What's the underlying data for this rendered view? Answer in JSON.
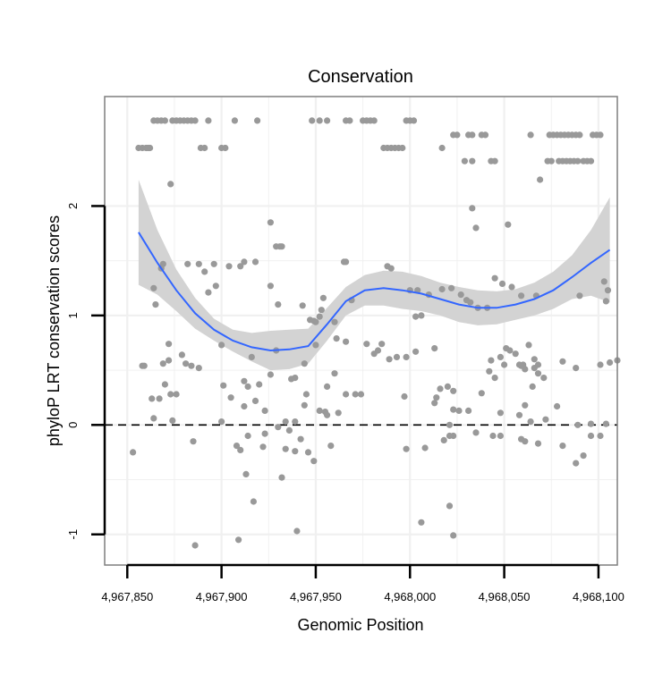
{
  "chart_data": {
    "type": "scatter",
    "title": "Conservation",
    "xlabel": "Genomic Position",
    "ylabel": "phyloP LRT conservation scores",
    "xlim": [
      4967838,
      4968110
    ],
    "ylim": [
      -1.28,
      3.0
    ],
    "xticks": [
      {
        "value": 4967850,
        "label": "4,967,850"
      },
      {
        "value": 4967900,
        "label": "4,967,900"
      },
      {
        "value": 4967950,
        "label": "4,967,950"
      },
      {
        "value": 4968000,
        "label": "4,968,000"
      },
      {
        "value": 4968050,
        "label": "4,968,050"
      },
      {
        "value": 4968100,
        "label": "4,968,100"
      }
    ],
    "yticks": [
      {
        "value": -1,
        "label": "-1"
      },
      {
        "value": 0,
        "label": "0"
      },
      {
        "value": 1,
        "label": "1"
      },
      {
        "value": 2,
        "label": "2"
      }
    ],
    "reference_line": {
      "y": 0,
      "style": "dashed"
    },
    "grid": true,
    "colors": {
      "points": "#999999",
      "smooth_line": "#3366ff",
      "confidence_band": "#d3d3d3",
      "panel_border": "#7f7f7f",
      "grid": "#f0f0f0"
    },
    "points": [
      [
        4967856,
        2.53
      ],
      [
        4967858,
        2.53
      ],
      [
        4967860,
        2.53
      ],
      [
        4967861,
        2.53
      ],
      [
        4967862,
        2.53
      ],
      [
        4967864,
        2.78
      ],
      [
        4967866,
        2.78
      ],
      [
        4967868,
        2.78
      ],
      [
        4967870,
        2.78
      ],
      [
        4967874,
        2.78
      ],
      [
        4967876,
        2.78
      ],
      [
        4967878,
        2.78
      ],
      [
        4967880,
        2.78
      ],
      [
        4967882,
        2.78
      ],
      [
        4967884,
        2.78
      ],
      [
        4967886,
        2.78
      ],
      [
        4967889,
        2.53
      ],
      [
        4967891,
        2.53
      ],
      [
        4967893,
        2.78
      ],
      [
        4967900,
        2.53
      ],
      [
        4967902,
        2.53
      ],
      [
        4967907,
        2.78
      ],
      [
        4967919,
        2.78
      ],
      [
        4967948,
        2.78
      ],
      [
        4967952,
        2.78
      ],
      [
        4967956,
        2.78
      ],
      [
        4967966,
        2.78
      ],
      [
        4967968,
        2.78
      ],
      [
        4967975,
        2.78
      ],
      [
        4967977,
        2.78
      ],
      [
        4967979,
        2.78
      ],
      [
        4967981,
        2.78
      ],
      [
        4967986,
        2.53
      ],
      [
        4967988,
        2.53
      ],
      [
        4967990,
        2.53
      ],
      [
        4967992,
        2.53
      ],
      [
        4967994,
        2.53
      ],
      [
        4967996,
        2.53
      ],
      [
        4967998,
        2.78
      ],
      [
        4968000,
        2.78
      ],
      [
        4968002,
        2.78
      ],
      [
        4968017,
        2.53
      ],
      [
        4968023,
        2.65
      ],
      [
        4968025,
        2.65
      ],
      [
        4968031,
        2.65
      ],
      [
        4968033,
        2.65
      ],
      [
        4968038,
        2.65
      ],
      [
        4968040,
        2.65
      ],
      [
        4968064,
        2.65
      ],
      [
        4968074,
        2.65
      ],
      [
        4968076,
        2.65
      ],
      [
        4968078,
        2.65
      ],
      [
        4968080,
        2.65
      ],
      [
        4968082,
        2.65
      ],
      [
        4968084,
        2.65
      ],
      [
        4968086,
        2.65
      ],
      [
        4968088,
        2.65
      ],
      [
        4968090,
        2.65
      ],
      [
        4968097,
        2.65
      ],
      [
        4968099,
        2.65
      ],
      [
        4968101,
        2.65
      ],
      [
        4968073,
        2.41
      ],
      [
        4968075,
        2.41
      ],
      [
        4968079,
        2.41
      ],
      [
        4968081,
        2.41
      ],
      [
        4968083,
        2.41
      ],
      [
        4968085,
        2.41
      ],
      [
        4968087,
        2.41
      ],
      [
        4968089,
        2.41
      ],
      [
        4968092,
        2.41
      ],
      [
        4968094,
        2.41
      ],
      [
        4968096,
        2.41
      ],
      [
        4968029,
        2.41
      ],
      [
        4968033,
        2.41
      ],
      [
        4968043,
        2.41
      ],
      [
        4968045,
        2.41
      ],
      [
        4967873,
        2.2
      ],
      [
        4968069,
        2.24
      ],
      [
        4968033,
        1.98
      ],
      [
        4968035,
        1.8
      ],
      [
        4968052,
        1.83
      ],
      [
        4967926,
        1.85
      ],
      [
        4967929,
        1.63
      ],
      [
        4967931,
        1.63
      ],
      [
        4967932,
        1.63
      ],
      [
        4967868,
        1.43
      ],
      [
        4967869,
        1.47
      ],
      [
        4967882,
        1.47
      ],
      [
        4967888,
        1.47
      ],
      [
        4967891,
        1.4
      ],
      [
        4967896,
        1.47
      ],
      [
        4967904,
        1.45
      ],
      [
        4967910,
        1.45
      ],
      [
        4967912,
        1.49
      ],
      [
        4967918,
        1.49
      ],
      [
        4967965,
        1.49
      ],
      [
        4967966,
        1.49
      ],
      [
        4967988,
        1.45
      ],
      [
        4967990,
        1.43
      ],
      [
        4968045,
        1.34
      ],
      [
        4968049,
        1.29
      ],
      [
        4968054,
        1.26
      ],
      [
        4967864,
        1.25
      ],
      [
        4967897,
        1.27
      ],
      [
        4967893,
        1.21
      ],
      [
        4967926,
        1.27
      ],
      [
        4967954,
        1.16
      ],
      [
        4967969,
        1.14
      ],
      [
        4968000,
        1.23
      ],
      [
        4968004,
        1.23
      ],
      [
        4968010,
        1.19
      ],
      [
        4968017,
        1.24
      ],
      [
        4968022,
        1.25
      ],
      [
        4968027,
        1.19
      ],
      [
        4968030,
        1.14
      ],
      [
        4968032,
        1.12
      ],
      [
        4968036,
        1.07
      ],
      [
        4968041,
        1.07
      ],
      [
        4968059,
        1.18
      ],
      [
        4968067,
        1.18
      ],
      [
        4968090,
        1.18
      ],
      [
        4968103,
        1.31
      ],
      [
        4968105,
        1.23
      ],
      [
        4968104,
        1.13
      ],
      [
        4967865,
        1.1
      ],
      [
        4967930,
        1.1
      ],
      [
        4967943,
        1.09
      ],
      [
        4967947,
        0.96
      ],
      [
        4967949,
        0.95
      ],
      [
        4967952,
        0.99
      ],
      [
        4967950,
        0.94
      ],
      [
        4967953,
        1.05
      ],
      [
        4967960,
        0.94
      ],
      [
        4968003,
        0.99
      ],
      [
        4968006,
        1.0
      ],
      [
        4967872,
        0.74
      ],
      [
        4967900,
        0.73
      ],
      [
        4967929,
        0.68
      ],
      [
        4967950,
        0.73
      ],
      [
        4967961,
        0.79
      ],
      [
        4967966,
        0.76
      ],
      [
        4967977,
        0.74
      ],
      [
        4967985,
        0.74
      ],
      [
        4967981,
        0.65
      ],
      [
        4967983,
        0.68
      ],
      [
        4967989,
        0.6
      ],
      [
        4967993,
        0.62
      ],
      [
        4967998,
        0.62
      ],
      [
        4968003,
        0.67
      ],
      [
        4968013,
        0.7
      ],
      [
        4968051,
        0.7
      ],
      [
        4968053,
        0.68
      ],
      [
        4968056,
        0.65
      ],
      [
        4968063,
        0.73
      ],
      [
        4968066,
        0.6
      ],
      [
        4968068,
        0.55
      ],
      [
        4968058,
        0.55
      ],
      [
        4968066,
        0.52
      ],
      [
        4967858,
        0.54
      ],
      [
        4967859,
        0.54
      ],
      [
        4967869,
        0.56
      ],
      [
        4967872,
        0.59
      ],
      [
        4967879,
        0.64
      ],
      [
        4967881,
        0.56
      ],
      [
        4967884,
        0.54
      ],
      [
        4967888,
        0.52
      ],
      [
        4967916,
        0.62
      ],
      [
        4967944,
        0.56
      ],
      [
        4968042,
        0.49
      ],
      [
        4968043,
        0.59
      ],
      [
        4968048,
        0.62
      ],
      [
        4968050,
        0.55
      ],
      [
        4968059,
        0.54
      ],
      [
        4968060,
        0.55
      ],
      [
        4968061,
        0.51
      ],
      [
        4968068,
        0.47
      ],
      [
        4968071,
        0.43
      ],
      [
        4968081,
        0.58
      ],
      [
        4968088,
        0.52
      ],
      [
        4968101,
        0.55
      ],
      [
        4968106,
        0.57
      ],
      [
        4968110,
        0.59
      ],
      [
        4967870,
        0.37
      ],
      [
        4967873,
        0.28
      ],
      [
        4967876,
        0.28
      ],
      [
        4967901,
        0.36
      ],
      [
        4967912,
        0.4
      ],
      [
        4967914,
        0.35
      ],
      [
        4967920,
        0.37
      ],
      [
        4967926,
        0.46
      ],
      [
        4967937,
        0.42
      ],
      [
        4967939,
        0.43
      ],
      [
        4967945,
        0.28
      ],
      [
        4967956,
        0.35
      ],
      [
        4967960,
        0.47
      ],
      [
        4967966,
        0.28
      ],
      [
        4967971,
        0.28
      ],
      [
        4967974,
        0.28
      ],
      [
        4968020,
        0.35
      ],
      [
        4968023,
        0.31
      ],
      [
        4968038,
        0.29
      ],
      [
        4968045,
        0.43
      ],
      [
        4968061,
        0.18
      ],
      [
        4968065,
        0.35
      ],
      [
        4967863,
        0.24
      ],
      [
        4967867,
        0.24
      ],
      [
        4967864,
        0.06
      ],
      [
        4967874,
        0.04
      ],
      [
        4967900,
        0.03
      ],
      [
        4967905,
        0.25
      ],
      [
        4967912,
        0.17
      ],
      [
        4967918,
        0.22
      ],
      [
        4967923,
        0.13
      ],
      [
        4967934,
        0.03
      ],
      [
        4967936,
        -0.05
      ],
      [
        4967939,
        0.03
      ],
      [
        4967944,
        0.18
      ],
      [
        4967952,
        0.13
      ],
      [
        4967955,
        0.12
      ],
      [
        4967956,
        0.09
      ],
      [
        4967962,
        0.11
      ],
      [
        4967997,
        0.26
      ],
      [
        4968013,
        0.2
      ],
      [
        4968014,
        0.25
      ],
      [
        4968016,
        0.33
      ],
      [
        4968021,
        0.0
      ],
      [
        4968023,
        -0.1
      ],
      [
        4968023,
        0.14
      ],
      [
        4968026,
        0.13
      ],
      [
        4968031,
        0.13
      ],
      [
        4968035,
        -0.07
      ],
      [
        4968048,
        0.11
      ],
      [
        4968058,
        0.09
      ],
      [
        4968064,
        0.03
      ],
      [
        4968072,
        0.05
      ],
      [
        4968078,
        0.17
      ],
      [
        4968089,
        0.0
      ],
      [
        4968096,
        0.01
      ],
      [
        4968104,
        0.01
      ],
      [
        4967853,
        -0.25
      ],
      [
        4967885,
        -0.15
      ],
      [
        4967908,
        -0.19
      ],
      [
        4967910,
        -0.23
      ],
      [
        4967914,
        -0.1
      ],
      [
        4967922,
        -0.2
      ],
      [
        4967923,
        -0.08
      ],
      [
        4967930,
        -0.02
      ],
      [
        4967934,
        -0.22
      ],
      [
        4967939,
        -0.24
      ],
      [
        4967942,
        -0.13
      ],
      [
        4967946,
        -0.25
      ],
      [
        4967949,
        -0.33
      ],
      [
        4967958,
        -0.19
      ],
      [
        4967998,
        -0.22
      ],
      [
        4968008,
        -0.21
      ],
      [
        4968018,
        -0.14
      ],
      [
        4968021,
        -0.1
      ],
      [
        4968044,
        -0.1
      ],
      [
        4968048,
        -0.1
      ],
      [
        4968059,
        -0.13
      ],
      [
        4968061,
        -0.15
      ],
      [
        4968068,
        -0.17
      ],
      [
        4968081,
        -0.19
      ],
      [
        4968088,
        -0.35
      ],
      [
        4968092,
        -0.28
      ],
      [
        4968096,
        -0.1
      ],
      [
        4968101,
        -0.1
      ],
      [
        4967913,
        -0.45
      ],
      [
        4967917,
        -0.7
      ],
      [
        4967932,
        -0.48
      ],
      [
        4967940,
        -0.97
      ],
      [
        4968006,
        -0.89
      ],
      [
        4968021,
        -0.74
      ],
      [
        4968023,
        -1.01
      ],
      [
        4967886,
        -1.1
      ],
      [
        4967909,
        -1.05
      ]
    ],
    "smooth_line": {
      "x": [
        4967856,
        4967866,
        4967876,
        4967886,
        4967896,
        4967906,
        4967916,
        4967926,
        4967936,
        4967946,
        4967956,
        4967966,
        4967976,
        4967986,
        4967996,
        4968006,
        4968016,
        4968026,
        4968036,
        4968046,
        4968056,
        4968066,
        4968076,
        4968086,
        4968096,
        4968106
      ],
      "y": [
        1.76,
        1.48,
        1.23,
        1.02,
        0.87,
        0.77,
        0.71,
        0.68,
        0.69,
        0.72,
        0.92,
        1.13,
        1.23,
        1.25,
        1.23,
        1.2,
        1.15,
        1.1,
        1.07,
        1.07,
        1.1,
        1.15,
        1.23,
        1.35,
        1.48,
        1.6
      ]
    },
    "confidence_band": {
      "upper": [
        2.24,
        1.78,
        1.42,
        1.16,
        0.97,
        0.87,
        0.84,
        0.86,
        0.87,
        0.88,
        1.07,
        1.26,
        1.37,
        1.41,
        1.4,
        1.36,
        1.3,
        1.26,
        1.23,
        1.22,
        1.24,
        1.3,
        1.4,
        1.55,
        1.78,
        2.08
      ],
      "lower": [
        1.28,
        1.19,
        1.04,
        0.88,
        0.77,
        0.67,
        0.58,
        0.5,
        0.51,
        0.56,
        0.77,
        1.0,
        1.09,
        1.09,
        1.06,
        1.04,
        1.0,
        0.94,
        0.91,
        0.92,
        0.96,
        1.0,
        1.06,
        1.15,
        1.18,
        1.12
      ]
    }
  }
}
